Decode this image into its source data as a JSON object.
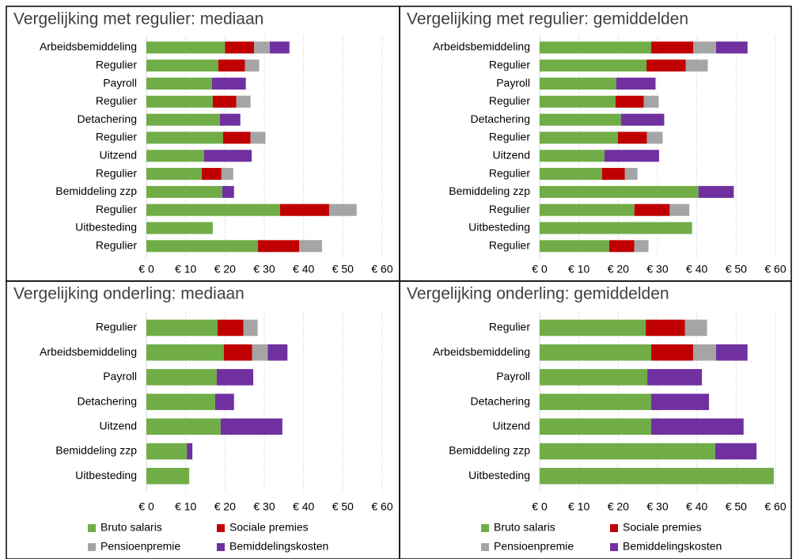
{
  "chart_data": [
    {
      "type": "bar",
      "horizontal": true,
      "title": "Vergelijking met regulier: mediaan",
      "categories": [
        "Arbeidsbemiddeling",
        "Regulier",
        "Payroll",
        "Regulier",
        "Detachering",
        "Regulier",
        "Uitzend",
        "Regulier",
        "Bemiddeling zzp",
        "Regulier",
        "Uitbesteding",
        "Regulier"
      ],
      "series": [
        {
          "color": "#70ad47",
          "values": [
            20,
            18.3,
            16.7,
            16.9,
            18.7,
            19.5,
            14.7,
            14.1,
            19.3,
            34,
            16.9,
            28.4
          ]
        },
        {
          "color": "#c00000",
          "values": [
            7.4,
            6.8,
            0,
            6,
            0,
            7,
            0,
            5,
            0,
            12.5,
            0,
            10.5
          ]
        },
        {
          "color": "#a5a5a5",
          "values": [
            4,
            3.6,
            0,
            3.6,
            0,
            3.8,
            0,
            3,
            0,
            7,
            0,
            5.8
          ]
        },
        {
          "color": "#7030a0",
          "values": [
            5,
            0,
            8.6,
            0,
            5.2,
            0,
            12.1,
            0,
            3,
            0,
            0,
            0
          ]
        }
      ],
      "xlim": [
        0,
        60
      ],
      "xticks": [
        {
          "value": 0,
          "label": "€ 0"
        },
        {
          "value": 10,
          "label": "€ 10"
        },
        {
          "value": 20,
          "label": "€ 20"
        },
        {
          "value": 30,
          "label": "€ 30"
        },
        {
          "value": 40,
          "label": "€ 40"
        },
        {
          "value": 50,
          "label": "€ 50"
        },
        {
          "value": 60,
          "label": "€ 60"
        }
      ],
      "grid": true,
      "legend": false
    },
    {
      "type": "bar",
      "horizontal": true,
      "title": "Vergelijking met regulier: gemiddelden",
      "categories": [
        "Arbeidsbemiddeling",
        "Regulier",
        "Payroll",
        "Regulier",
        "Detachering",
        "Regulier",
        "Uitzend",
        "Regulier",
        "Bemiddeling zzp",
        "Regulier",
        "Uitbesteding",
        "Regulier"
      ],
      "series": [
        {
          "color": "#70ad47",
          "values": [
            28.4,
            27.2,
            19.5,
            19.3,
            20.7,
            19.9,
            16.5,
            15.9,
            40.4,
            24.1,
            38.8,
            17.7
          ]
        },
        {
          "color": "#c00000",
          "values": [
            10.7,
            10,
            0,
            7.2,
            0,
            7.4,
            0,
            5.8,
            0,
            9,
            0,
            6.4
          ]
        },
        {
          "color": "#a5a5a5",
          "values": [
            5.8,
            5.6,
            0,
            3.8,
            0,
            4,
            0,
            3.2,
            0,
            5,
            0,
            3.6
          ]
        },
        {
          "color": "#7030a0",
          "values": [
            8,
            0,
            10,
            0,
            11,
            0,
            13.9,
            0,
            9,
            0,
            0,
            0
          ]
        }
      ],
      "xlim": [
        0,
        60
      ],
      "xticks": [
        {
          "value": 0,
          "label": "€ 0"
        },
        {
          "value": 10,
          "label": "€ 10"
        },
        {
          "value": 20,
          "label": "€ 20"
        },
        {
          "value": 30,
          "label": "€ 30"
        },
        {
          "value": 40,
          "label": "€ 40"
        },
        {
          "value": 50,
          "label": "€ 50"
        },
        {
          "value": 60,
          "label": "€ 60"
        }
      ],
      "grid": true,
      "legend": false
    },
    {
      "type": "bar",
      "horizontal": true,
      "title": "Vergelijking onderling: mediaan",
      "categories": [
        "Regulier",
        "Arbeidsbemiddeling",
        "Payroll",
        "Detachering",
        "Uitzend",
        "Bemiddeling zzp",
        "Uitbesteding"
      ],
      "series": [
        {
          "name": "Bruto salaris",
          "color": "#70ad47",
          "values": [
            18.1,
            19.7,
            17.9,
            17.5,
            18.9,
            10.3,
            10.9
          ]
        },
        {
          "name": "Sociale premies",
          "color": "#c00000",
          "values": [
            6.6,
            7.2,
            0,
            0,
            0,
            0,
            0
          ]
        },
        {
          "name": "Pensioenpremie",
          "color": "#a5a5a5",
          "values": [
            3.6,
            4,
            0,
            0,
            0,
            0,
            0
          ]
        },
        {
          "name": "Bemiddelingskosten",
          "color": "#7030a0",
          "values": [
            0,
            5,
            9.3,
            4.8,
            15.7,
            1.4,
            0
          ]
        }
      ],
      "xlim": [
        0,
        60
      ],
      "xticks": [
        {
          "value": 0,
          "label": "€ 0"
        },
        {
          "value": 10,
          "label": "€ 10"
        },
        {
          "value": 20,
          "label": "€ 20"
        },
        {
          "value": 30,
          "label": "€ 30"
        },
        {
          "value": 40,
          "label": "€ 40"
        },
        {
          "value": 50,
          "label": "€ 50"
        },
        {
          "value": 60,
          "label": "€ 60"
        }
      ],
      "grid": true,
      "legend": true
    },
    {
      "type": "bar",
      "horizontal": true,
      "title": "Vergelijking onderling: gemiddelden",
      "categories": [
        "Regulier",
        "Arbeidsbemiddeling",
        "Payroll",
        "Detachering",
        "Uitzend",
        "Bemiddeling zzp",
        "Uitbesteding"
      ],
      "series": [
        {
          "name": "Bruto salaris",
          "color": "#70ad47",
          "values": [
            27,
            28.4,
            27.4,
            28.4,
            28.4,
            44.7,
            59.6
          ]
        },
        {
          "name": "Sociale premies",
          "color": "#c00000",
          "values": [
            10,
            10.7,
            0,
            0,
            0,
            0,
            0
          ]
        },
        {
          "name": "Pensioenpremie",
          "color": "#a5a5a5",
          "values": [
            5.6,
            5.8,
            0,
            0,
            0,
            0,
            0
          ]
        },
        {
          "name": "Bemiddelingskosten",
          "color": "#7030a0",
          "values": [
            0,
            8,
            13.9,
            14.7,
            23.5,
            10.5,
            0
          ]
        }
      ],
      "xlim": [
        0,
        60
      ],
      "xticks": [
        {
          "value": 0,
          "label": "€ 0"
        },
        {
          "value": 10,
          "label": "€ 10"
        },
        {
          "value": 20,
          "label": "€ 20"
        },
        {
          "value": 30,
          "label": "€ 30"
        },
        {
          "value": 40,
          "label": "€ 40"
        },
        {
          "value": 50,
          "label": "€ 50"
        },
        {
          "value": 60,
          "label": "€ 60"
        }
      ],
      "grid": true,
      "legend": true
    }
  ]
}
